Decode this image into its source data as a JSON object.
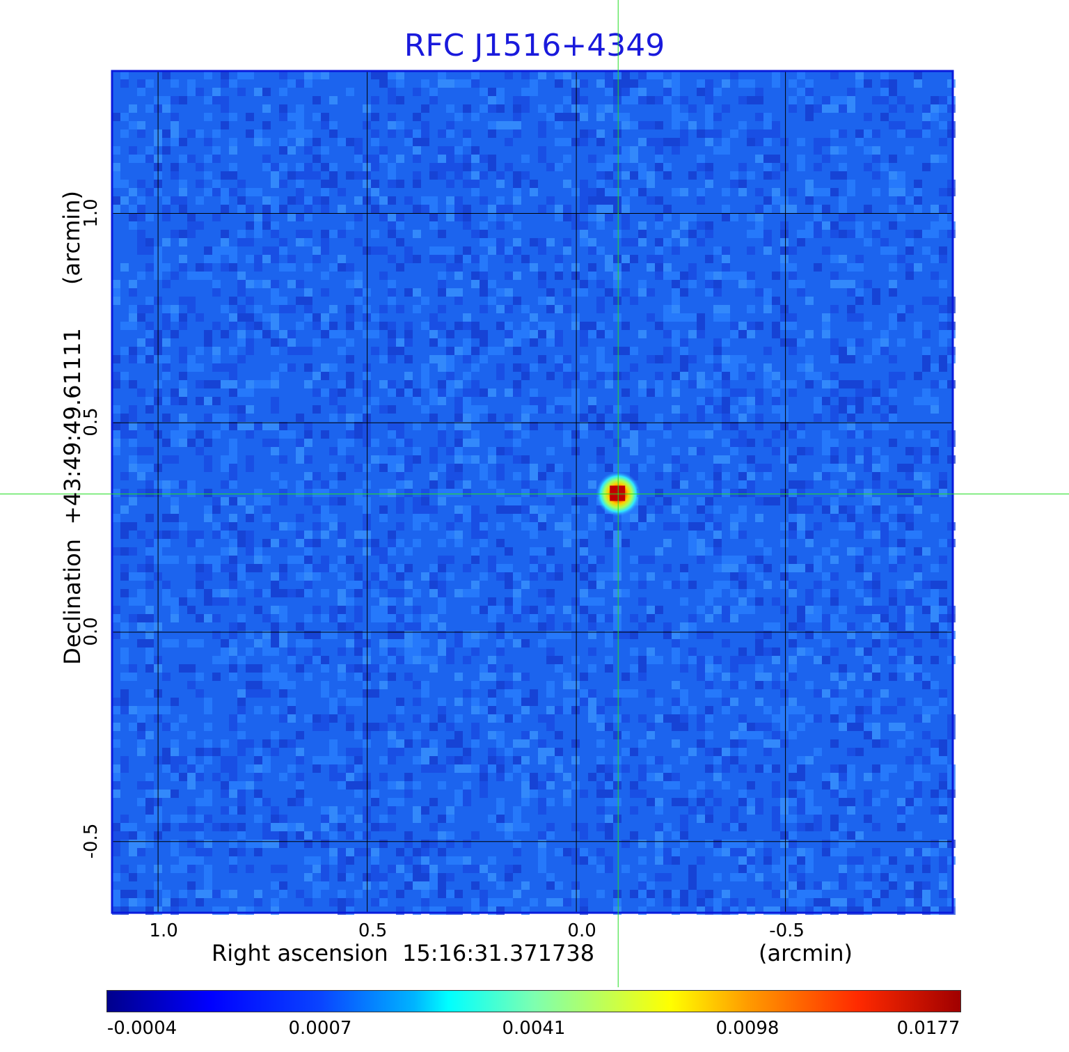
{
  "chart_data": {
    "type": "heatmap",
    "title": "RFC J1516+4349",
    "xlabel": "Right ascension  15:16:31.371738",
    "x_unit": "(arcmin)",
    "ylabel": "Declination  +43:49:49.61111",
    "y_unit": "(arcmin)",
    "x_ticks": [
      "1.0",
      "0.5",
      "0.0",
      "-0.5"
    ],
    "y_ticks": [
      "1.0",
      "0.5",
      "0.0",
      "-0.5"
    ],
    "xlim": [
      1.11,
      -0.9
    ],
    "ylim": [
      -0.67,
      1.34
    ],
    "grid": true,
    "crosshair": {
      "x": -0.1,
      "y": 0.33
    },
    "source": {
      "x": -0.1,
      "y": 0.33,
      "peak": 0.0177
    },
    "colorbar": {
      "ticks": [
        "-0.0004",
        "0.0007",
        "0.0041",
        "0.0098",
        "0.0177"
      ],
      "colormap": "jet"
    }
  },
  "colors": {
    "title": "#1a1adc",
    "frame": "#0a1adc",
    "crosshair": "#22dd22",
    "grid": "#000000",
    "background_field": "#1c64ee"
  }
}
